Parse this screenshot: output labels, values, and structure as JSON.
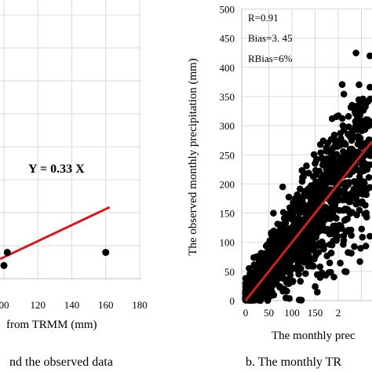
{
  "chart_data": [
    {
      "type": "scatter",
      "panel": "a",
      "caption": "nd the observed data",
      "xlabel": "from TRMM (mm)",
      "ylabel": "",
      "xlim": [
        0,
        180
      ],
      "x_ticks": [
        "00",
        "120",
        "140",
        "160",
        "180"
      ],
      "points": [
        {
          "x": 102,
          "y": 20
        },
        {
          "x": 160,
          "y": 20
        },
        {
          "x": 100,
          "y": 10
        }
      ],
      "fit": {
        "label": "Y = 0.33 X",
        "slope": 0.33,
        "color": "#d01f1f"
      },
      "grid": true
    },
    {
      "type": "scatter",
      "panel": "b",
      "caption": "b. The monthly TR",
      "xlabel": "The monthly prec",
      "ylabel": "The observed monthly precipitation (mm)",
      "xlim": [
        0,
        250
      ],
      "ylim": [
        0,
        500
      ],
      "x_ticks": [
        "0",
        "50",
        "100",
        "150",
        "2"
      ],
      "y_ticks": [
        "0",
        "50",
        "100",
        "150",
        "200",
        "250",
        "300",
        "350",
        "400",
        "450",
        "500"
      ],
      "stats": [
        "R=0.91",
        "Bias=3. 45",
        "RBias=6%"
      ],
      "fit": {
        "slope": 1.0,
        "color": "#d01f1f"
      },
      "grid": true,
      "colors": {
        "points": "#000000",
        "fit_line": "#d01f1f",
        "grid": "#d9d9d9"
      }
    }
  ]
}
